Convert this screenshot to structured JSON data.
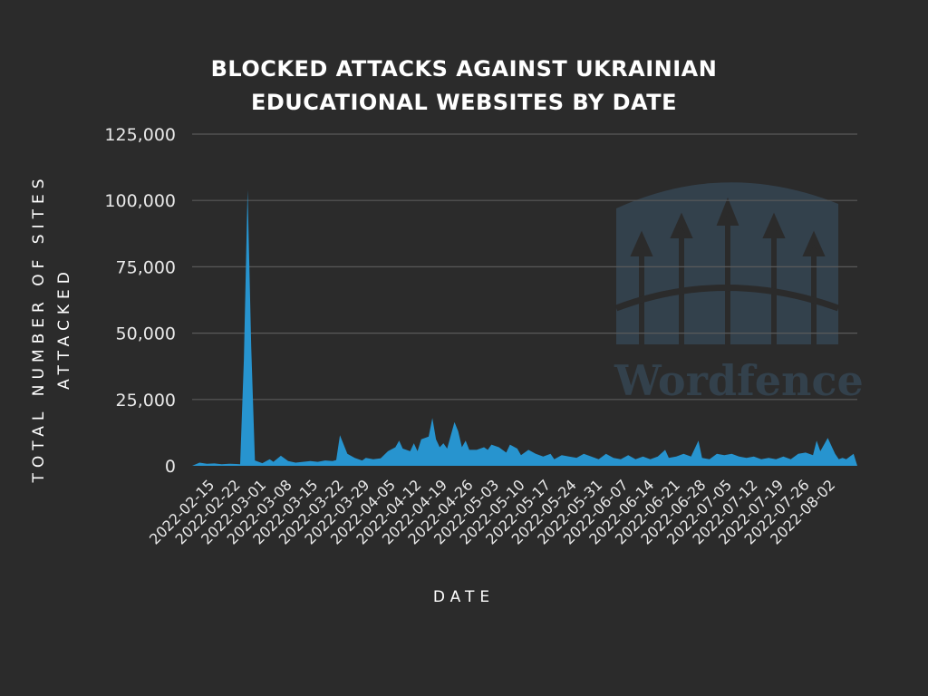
{
  "watermark": {
    "text_a": "Word",
    "text_b": "fence",
    "icon": "wordfence-castle-gate-icon"
  },
  "chart_data": {
    "type": "area",
    "title_lines": [
      "BLOCKED ATTACKS AGAINST UKRAINIAN",
      "EDUCATIONAL WEBSITES BY DATE"
    ],
    "xlabel": "DATE",
    "ylabel_lines": [
      "TOTAL NUMBER OF SITES",
      "ATTACKED"
    ],
    "ylim": [
      0,
      125000
    ],
    "yticks": [
      0,
      25000,
      50000,
      75000,
      100000,
      125000
    ],
    "ytick_labels": [
      "0",
      "25,000",
      "50,000",
      "75,000",
      "100,000",
      "125,000"
    ],
    "grid": true,
    "legend": "none",
    "color": "#2794cf",
    "xlim": [
      "2022-02-10",
      "2022-08-09"
    ],
    "xtick_labels": [
      "2022-02-15",
      "2022-02-22",
      "2022-03-01",
      "2022-03-08",
      "2022-03-15",
      "2022-03-22",
      "2022-03-29",
      "2022-04-05",
      "2022-04-12",
      "2022-04-19",
      "2022-04-26",
      "2022-05-03",
      "2022-05-10",
      "2022-05-17",
      "2022-05-24",
      "2022-05-31",
      "2022-06-07",
      "2022-06-14",
      "2022-06-21",
      "2022-06-28",
      "2022-07-05",
      "2022-07-12",
      "2022-07-19",
      "2022-07-26",
      "2022-08-02"
    ],
    "series": [
      {
        "values": [
          [
            "2022-02-10",
            0
          ],
          [
            "2022-02-12",
            1200
          ],
          [
            "2022-02-14",
            800
          ],
          [
            "2022-02-16",
            900
          ],
          [
            "2022-02-18",
            600
          ],
          [
            "2022-02-20",
            800
          ],
          [
            "2022-02-22",
            700
          ],
          [
            "2022-02-23",
            600
          ],
          [
            "2022-02-24",
            40000
          ],
          [
            "2022-02-25",
            104000
          ],
          [
            "2022-02-26",
            45000
          ],
          [
            "2022-02-27",
            2000
          ],
          [
            "2022-03-01",
            1000
          ],
          [
            "2022-03-03",
            2500
          ],
          [
            "2022-03-04",
            1500
          ],
          [
            "2022-03-06",
            3800
          ],
          [
            "2022-03-08",
            1800
          ],
          [
            "2022-03-10",
            1200
          ],
          [
            "2022-03-12",
            1500
          ],
          [
            "2022-03-14",
            1800
          ],
          [
            "2022-03-16",
            1500
          ],
          [
            "2022-03-18",
            2000
          ],
          [
            "2022-03-20",
            1800
          ],
          [
            "2022-03-21",
            2200
          ],
          [
            "2022-03-22",
            11500
          ],
          [
            "2022-03-24",
            4500
          ],
          [
            "2022-03-26",
            3000
          ],
          [
            "2022-03-28",
            2000
          ],
          [
            "2022-03-29",
            3000
          ],
          [
            "2022-03-31",
            2500
          ],
          [
            "2022-04-02",
            2800
          ],
          [
            "2022-04-04",
            5500
          ],
          [
            "2022-04-06",
            7000
          ],
          [
            "2022-04-07",
            9500
          ],
          [
            "2022-04-08",
            6500
          ],
          [
            "2022-04-10",
            5500
          ],
          [
            "2022-04-11",
            8500
          ],
          [
            "2022-04-12",
            5500
          ],
          [
            "2022-04-13",
            10000
          ],
          [
            "2022-04-15",
            11000
          ],
          [
            "2022-04-16",
            18000
          ],
          [
            "2022-04-17",
            10000
          ],
          [
            "2022-04-18",
            7000
          ],
          [
            "2022-04-19",
            8500
          ],
          [
            "2022-04-20",
            6500
          ],
          [
            "2022-04-22",
            16500
          ],
          [
            "2022-04-23",
            13000
          ],
          [
            "2022-04-24",
            7000
          ],
          [
            "2022-04-25",
            9500
          ],
          [
            "2022-04-26",
            6000
          ],
          [
            "2022-04-28",
            6000
          ],
          [
            "2022-04-30",
            7000
          ],
          [
            "2022-05-01",
            6000
          ],
          [
            "2022-05-02",
            8000
          ],
          [
            "2022-05-04",
            7000
          ],
          [
            "2022-05-06",
            5000
          ],
          [
            "2022-05-07",
            8000
          ],
          [
            "2022-05-09",
            6500
          ],
          [
            "2022-05-10",
            4000
          ],
          [
            "2022-05-12",
            6000
          ],
          [
            "2022-05-14",
            4500
          ],
          [
            "2022-05-16",
            3500
          ],
          [
            "2022-05-18",
            4500
          ],
          [
            "2022-05-19",
            2500
          ],
          [
            "2022-05-21",
            4000
          ],
          [
            "2022-05-23",
            3500
          ],
          [
            "2022-05-25",
            3000
          ],
          [
            "2022-05-27",
            4500
          ],
          [
            "2022-05-29",
            3500
          ],
          [
            "2022-05-31",
            2500
          ],
          [
            "2022-06-02",
            4500
          ],
          [
            "2022-06-04",
            3000
          ],
          [
            "2022-06-06",
            2500
          ],
          [
            "2022-06-08",
            4000
          ],
          [
            "2022-06-10",
            2500
          ],
          [
            "2022-06-12",
            3500
          ],
          [
            "2022-06-14",
            2500
          ],
          [
            "2022-06-16",
            3500
          ],
          [
            "2022-06-18",
            6000
          ],
          [
            "2022-06-19",
            3000
          ],
          [
            "2022-06-21",
            3500
          ],
          [
            "2022-06-23",
            4500
          ],
          [
            "2022-06-25",
            3500
          ],
          [
            "2022-06-27",
            9500
          ],
          [
            "2022-06-28",
            3000
          ],
          [
            "2022-06-30",
            2500
          ],
          [
            "2022-07-02",
            4500
          ],
          [
            "2022-07-04",
            4000
          ],
          [
            "2022-07-06",
            4500
          ],
          [
            "2022-07-08",
            3500
          ],
          [
            "2022-07-10",
            3000
          ],
          [
            "2022-07-12",
            3500
          ],
          [
            "2022-07-14",
            2500
          ],
          [
            "2022-07-16",
            3000
          ],
          [
            "2022-07-18",
            2500
          ],
          [
            "2022-07-20",
            3500
          ],
          [
            "2022-07-22",
            2500
          ],
          [
            "2022-07-24",
            4500
          ],
          [
            "2022-07-26",
            5000
          ],
          [
            "2022-07-28",
            4000
          ],
          [
            "2022-07-29",
            9500
          ],
          [
            "2022-07-30",
            5500
          ],
          [
            "2022-08-01",
            10500
          ],
          [
            "2022-08-03",
            4500
          ],
          [
            "2022-08-04",
            2500
          ],
          [
            "2022-08-05",
            3000
          ],
          [
            "2022-08-06",
            2500
          ],
          [
            "2022-08-07",
            3500
          ],
          [
            "2022-08-08",
            4500
          ],
          [
            "2022-08-09",
            0
          ]
        ]
      }
    ]
  }
}
